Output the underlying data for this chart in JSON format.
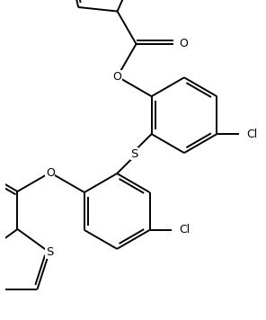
{
  "bg_color": "#ffffff",
  "line_color": "#000000",
  "lw": 1.4,
  "figsize": [
    2.96,
    3.56
  ],
  "dpi": 100,
  "xlim": [
    -1.2,
    2.8
  ],
  "ylim": [
    -3.8,
    1.2
  ]
}
